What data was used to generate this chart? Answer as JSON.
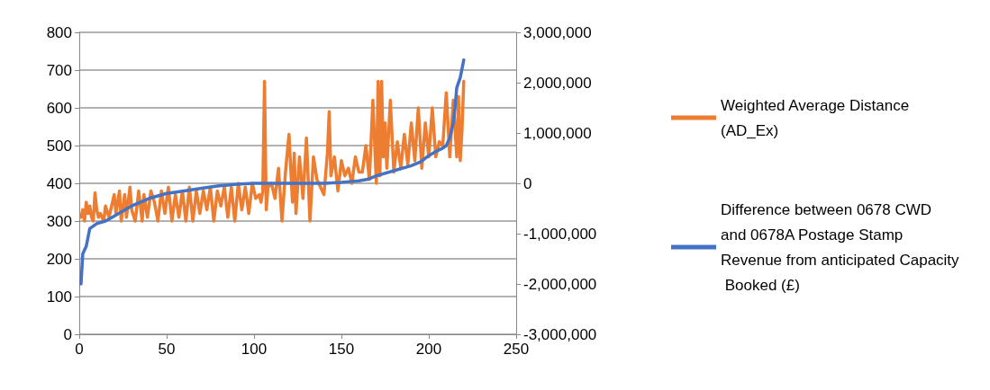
{
  "chart_data": {
    "type": "line",
    "xlim": [
      0,
      250
    ],
    "xticks": [
      0,
      50,
      100,
      150,
      200,
      250
    ],
    "ylim": [
      0,
      800
    ],
    "yticks": [
      0,
      100,
      200,
      300,
      400,
      500,
      600,
      700,
      800
    ],
    "y2lim": [
      -3000000,
      3000000
    ],
    "y2ticks": [
      {
        "value": -3000000,
        "label": "-3,000,000"
      },
      {
        "value": -2000000,
        "label": "-2,000,000"
      },
      {
        "value": -1000000,
        "label": "-1,000,000"
      },
      0,
      {
        "value": 1000000,
        "label": "1,000,000"
      },
      {
        "value": 2000000,
        "label": "2,000,000"
      },
      {
        "value": 3000000,
        "label": "3,000,000"
      }
    ],
    "grid": "y",
    "legend": "right",
    "marker": "none",
    "line_style": "solid",
    "series": [
      {
        "name": "Weighted Average Distance (AD_Ex)",
        "color": "#ed7d31",
        "x": [
          1,
          2,
          3,
          4,
          5,
          6,
          7,
          8,
          9,
          10,
          11,
          12,
          14,
          15,
          17,
          18,
          20,
          21,
          23,
          24,
          26,
          27,
          29,
          30,
          32,
          34,
          36,
          37,
          39,
          41,
          43,
          45,
          47,
          49,
          51,
          53,
          55,
          57,
          59,
          61,
          63,
          65,
          67,
          69,
          71,
          73,
          75,
          77,
          79,
          81,
          83,
          85,
          87,
          89,
          91,
          93,
          95,
          97,
          99,
          101,
          103,
          104,
          105,
          106,
          107,
          108,
          110,
          112,
          114,
          116,
          118,
          120,
          122,
          123,
          124,
          126,
          128,
          130,
          132,
          134,
          136,
          138,
          140,
          142,
          143,
          144,
          146,
          148,
          150,
          152,
          154,
          156,
          158,
          160,
          162,
          164,
          166,
          168,
          170,
          171,
          172,
          173,
          174,
          175,
          176,
          178,
          180,
          182,
          184,
          186,
          188,
          190,
          192,
          194,
          196,
          198,
          200,
          202,
          204,
          206,
          208,
          210,
          212,
          214,
          216,
          217,
          218,
          219,
          220
        ],
        "values": [
          310,
          330,
          300,
          350,
          320,
          340,
          310,
          300,
          375,
          330,
          310,
          320,
          300,
          340,
          310,
          330,
          370,
          320,
          380,
          300,
          370,
          310,
          390,
          330,
          300,
          380,
          300,
          370,
          310,
          380,
          350,
          300,
          380,
          320,
          390,
          300,
          370,
          310,
          380,
          300,
          390,
          300,
          380,
          320,
          380,
          330,
          390,
          300,
          380,
          340,
          390,
          310,
          390,
          300,
          400,
          330,
          390,
          320,
          400,
          360,
          370,
          350,
          380,
          670,
          330,
          390,
          400,
          360,
          440,
          300,
          430,
          530,
          350,
          480,
          320,
          470,
          360,
          520,
          300,
          470,
          410,
          390,
          370,
          480,
          590,
          420,
          470,
          380,
          460,
          420,
          440,
          400,
          470,
          430,
          430,
          500,
          410,
          620,
          400,
          670,
          420,
          670,
          470,
          560,
          440,
          620,
          430,
          510,
          440,
          530,
          450,
          560,
          460,
          600,
          440,
          560,
          470,
          600,
          470,
          510,
          500,
          640,
          470,
          620,
          470,
          630,
          460,
          540,
          670
        ]
      },
      {
        "name": "Difference between 0678 CWD and 0678A Postage Stamp Revenue from anticipated Capacity Booked (£)",
        "color": "#4472c4",
        "axis": "y2",
        "x": [
          1,
          2,
          4,
          6,
          8,
          10,
          15,
          20,
          25,
          30,
          40,
          50,
          60,
          70,
          80,
          90,
          100,
          120,
          140,
          150,
          160,
          165,
          170,
          180,
          190,
          195,
          200,
          205,
          208,
          210,
          212,
          213,
          214,
          215,
          216,
          218,
          220
        ],
        "values": [
          -2000000,
          -1400000,
          -1250000,
          -900000,
          -850000,
          -800000,
          -750000,
          -650000,
          -550000,
          -450000,
          -300000,
          -200000,
          -150000,
          -100000,
          -50000,
          -20000,
          0,
          0,
          0,
          20000,
          50000,
          80000,
          150000,
          250000,
          350000,
          420000,
          550000,
          650000,
          700000,
          750000,
          900000,
          1050000,
          1200000,
          1500000,
          1900000,
          2100000,
          2450000
        ]
      }
    ]
  }
}
